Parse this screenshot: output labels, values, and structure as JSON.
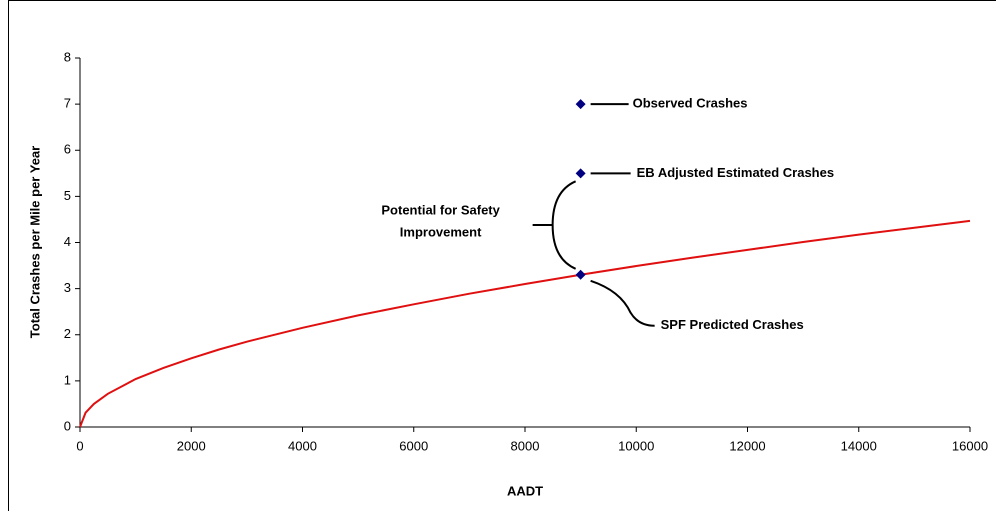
{
  "chart_data": {
    "type": "line",
    "x_label": "AADT",
    "y_label": "Total Crashes per Mile per Year",
    "xlim": [
      0,
      16000
    ],
    "xticks": [
      0,
      2000,
      4000,
      6000,
      8000,
      10000,
      12000,
      14000,
      16000
    ],
    "ylim": [
      0,
      8
    ],
    "yticks": [
      0,
      1,
      2,
      3,
      4,
      5,
      6,
      7,
      8
    ],
    "curve": {
      "color": "#e01010",
      "x": [
        0,
        100,
        250,
        500,
        1000,
        1500,
        2000,
        2500,
        3000,
        4000,
        5000,
        6000,
        7000,
        8000,
        9000,
        10000,
        11000,
        12000,
        13000,
        14000,
        15000,
        16000
      ],
      "values": [
        0,
        0.31,
        0.5,
        0.72,
        1.04,
        1.28,
        1.49,
        1.68,
        1.85,
        2.15,
        2.42,
        2.66,
        2.89,
        3.1,
        3.3,
        3.49,
        3.67,
        3.84,
        4.01,
        4.17,
        4.32,
        4.47
      ]
    },
    "points": [
      {
        "label": "Observed Crashes",
        "x": 9000,
        "y": 7,
        "color": "#000080"
      },
      {
        "label": "EB Adjusted Estimated Crashes",
        "x": 9000,
        "y": 5.5,
        "color": "#000080"
      },
      {
        "label": "SPF Predicted Crashes",
        "x": 9000,
        "y": 3.3,
        "color": "#000080"
      }
    ],
    "bracket_label": [
      "Potential for Safety",
      "Improvement"
    ]
  }
}
